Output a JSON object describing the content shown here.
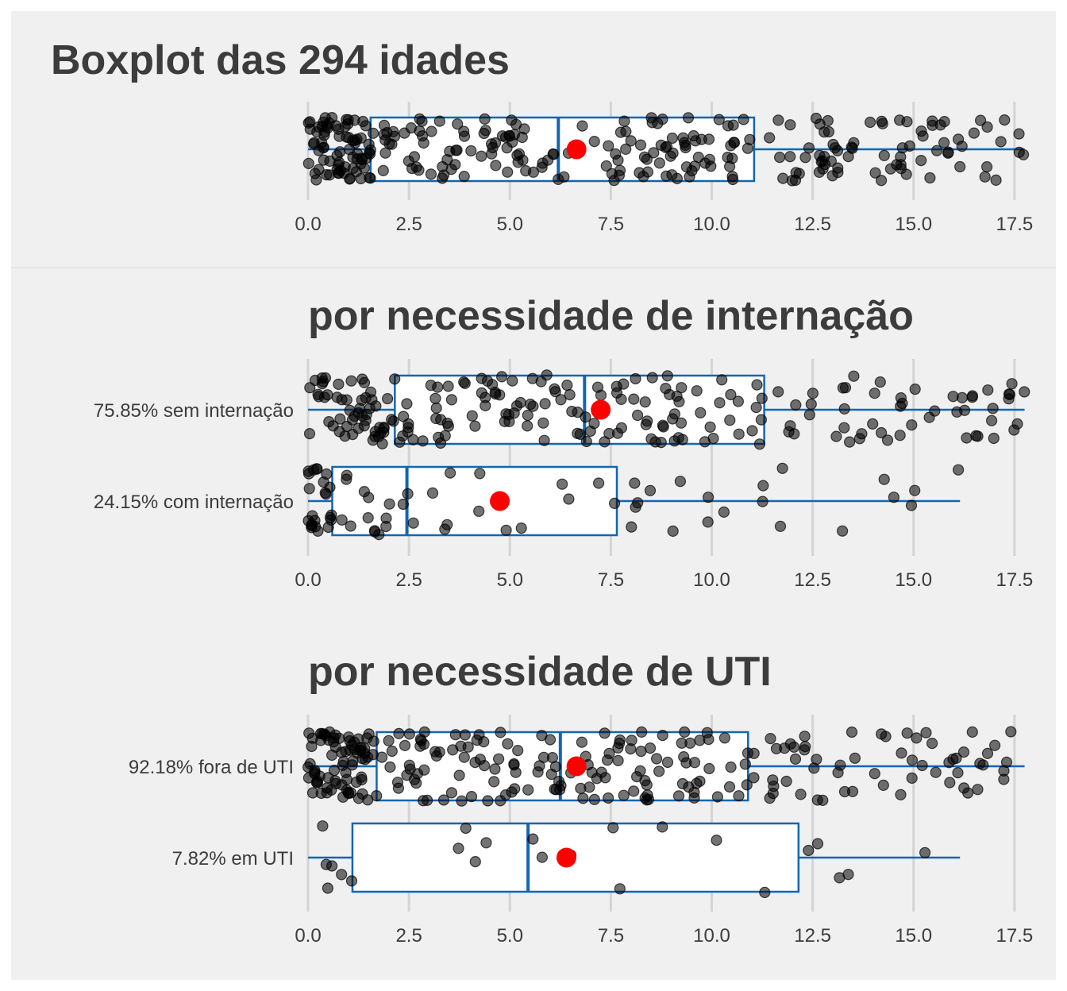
{
  "chart_data": [
    {
      "type": "boxplot",
      "title": "Boxplot das 294 idades",
      "xlim": [
        0,
        17.8
      ],
      "xticks": [
        "0.0",
        "2.5",
        "5.0",
        "7.5",
        "10.0",
        "12.5",
        "15.0",
        "17.5"
      ],
      "grid": "vertical",
      "groups": [
        {
          "label": "",
          "min": 0.0,
          "q1": 1.55,
          "median": 6.2,
          "q3": 11.05,
          "max": 17.75,
          "mean": 6.65,
          "n": 294
        }
      ]
    },
    {
      "type": "boxplot",
      "title": "por necessidade de internação",
      "xlim": [
        0,
        17.8
      ],
      "xticks": [
        "0.0",
        "2.5",
        "5.0",
        "7.5",
        "10.0",
        "12.5",
        "15.0",
        "17.5"
      ],
      "grid": "vertical",
      "groups": [
        {
          "label": "75.85% sem internação",
          "min": 0.0,
          "q1": 2.15,
          "median": 6.85,
          "q3": 11.3,
          "max": 17.75,
          "mean": 7.25,
          "n": 223
        },
        {
          "label": "24.15% com internação",
          "min": 0.0,
          "q1": 0.6,
          "median": 2.45,
          "q3": 7.65,
          "max": 16.15,
          "mean": 4.75,
          "n": 71
        }
      ]
    },
    {
      "type": "boxplot",
      "title": "por necessidade de UTI",
      "xlim": [
        0,
        17.8
      ],
      "xticks": [
        "0.0",
        "2.5",
        "5.0",
        "7.5",
        "10.0",
        "12.5",
        "15.0",
        "17.5"
      ],
      "grid": "vertical",
      "groups": [
        {
          "label": "92.18% fora de UTI",
          "min": 0.0,
          "q1": 1.7,
          "median": 6.25,
          "q3": 10.9,
          "max": 17.75,
          "mean": 6.65,
          "n": 271
        },
        {
          "label": "7.82% em UTI",
          "min": 0.0,
          "q1": 1.1,
          "median": 5.45,
          "q3": 12.15,
          "max": 16.15,
          "mean": 6.4,
          "n": 23
        }
      ]
    }
  ],
  "colors": {
    "panel_background": "#f0f0f0",
    "box_stroke": "#1266b3",
    "mean_marker": "#ff0000",
    "points": "#000000",
    "grid": "#d4d4d4",
    "text": "#3c3c3c"
  }
}
